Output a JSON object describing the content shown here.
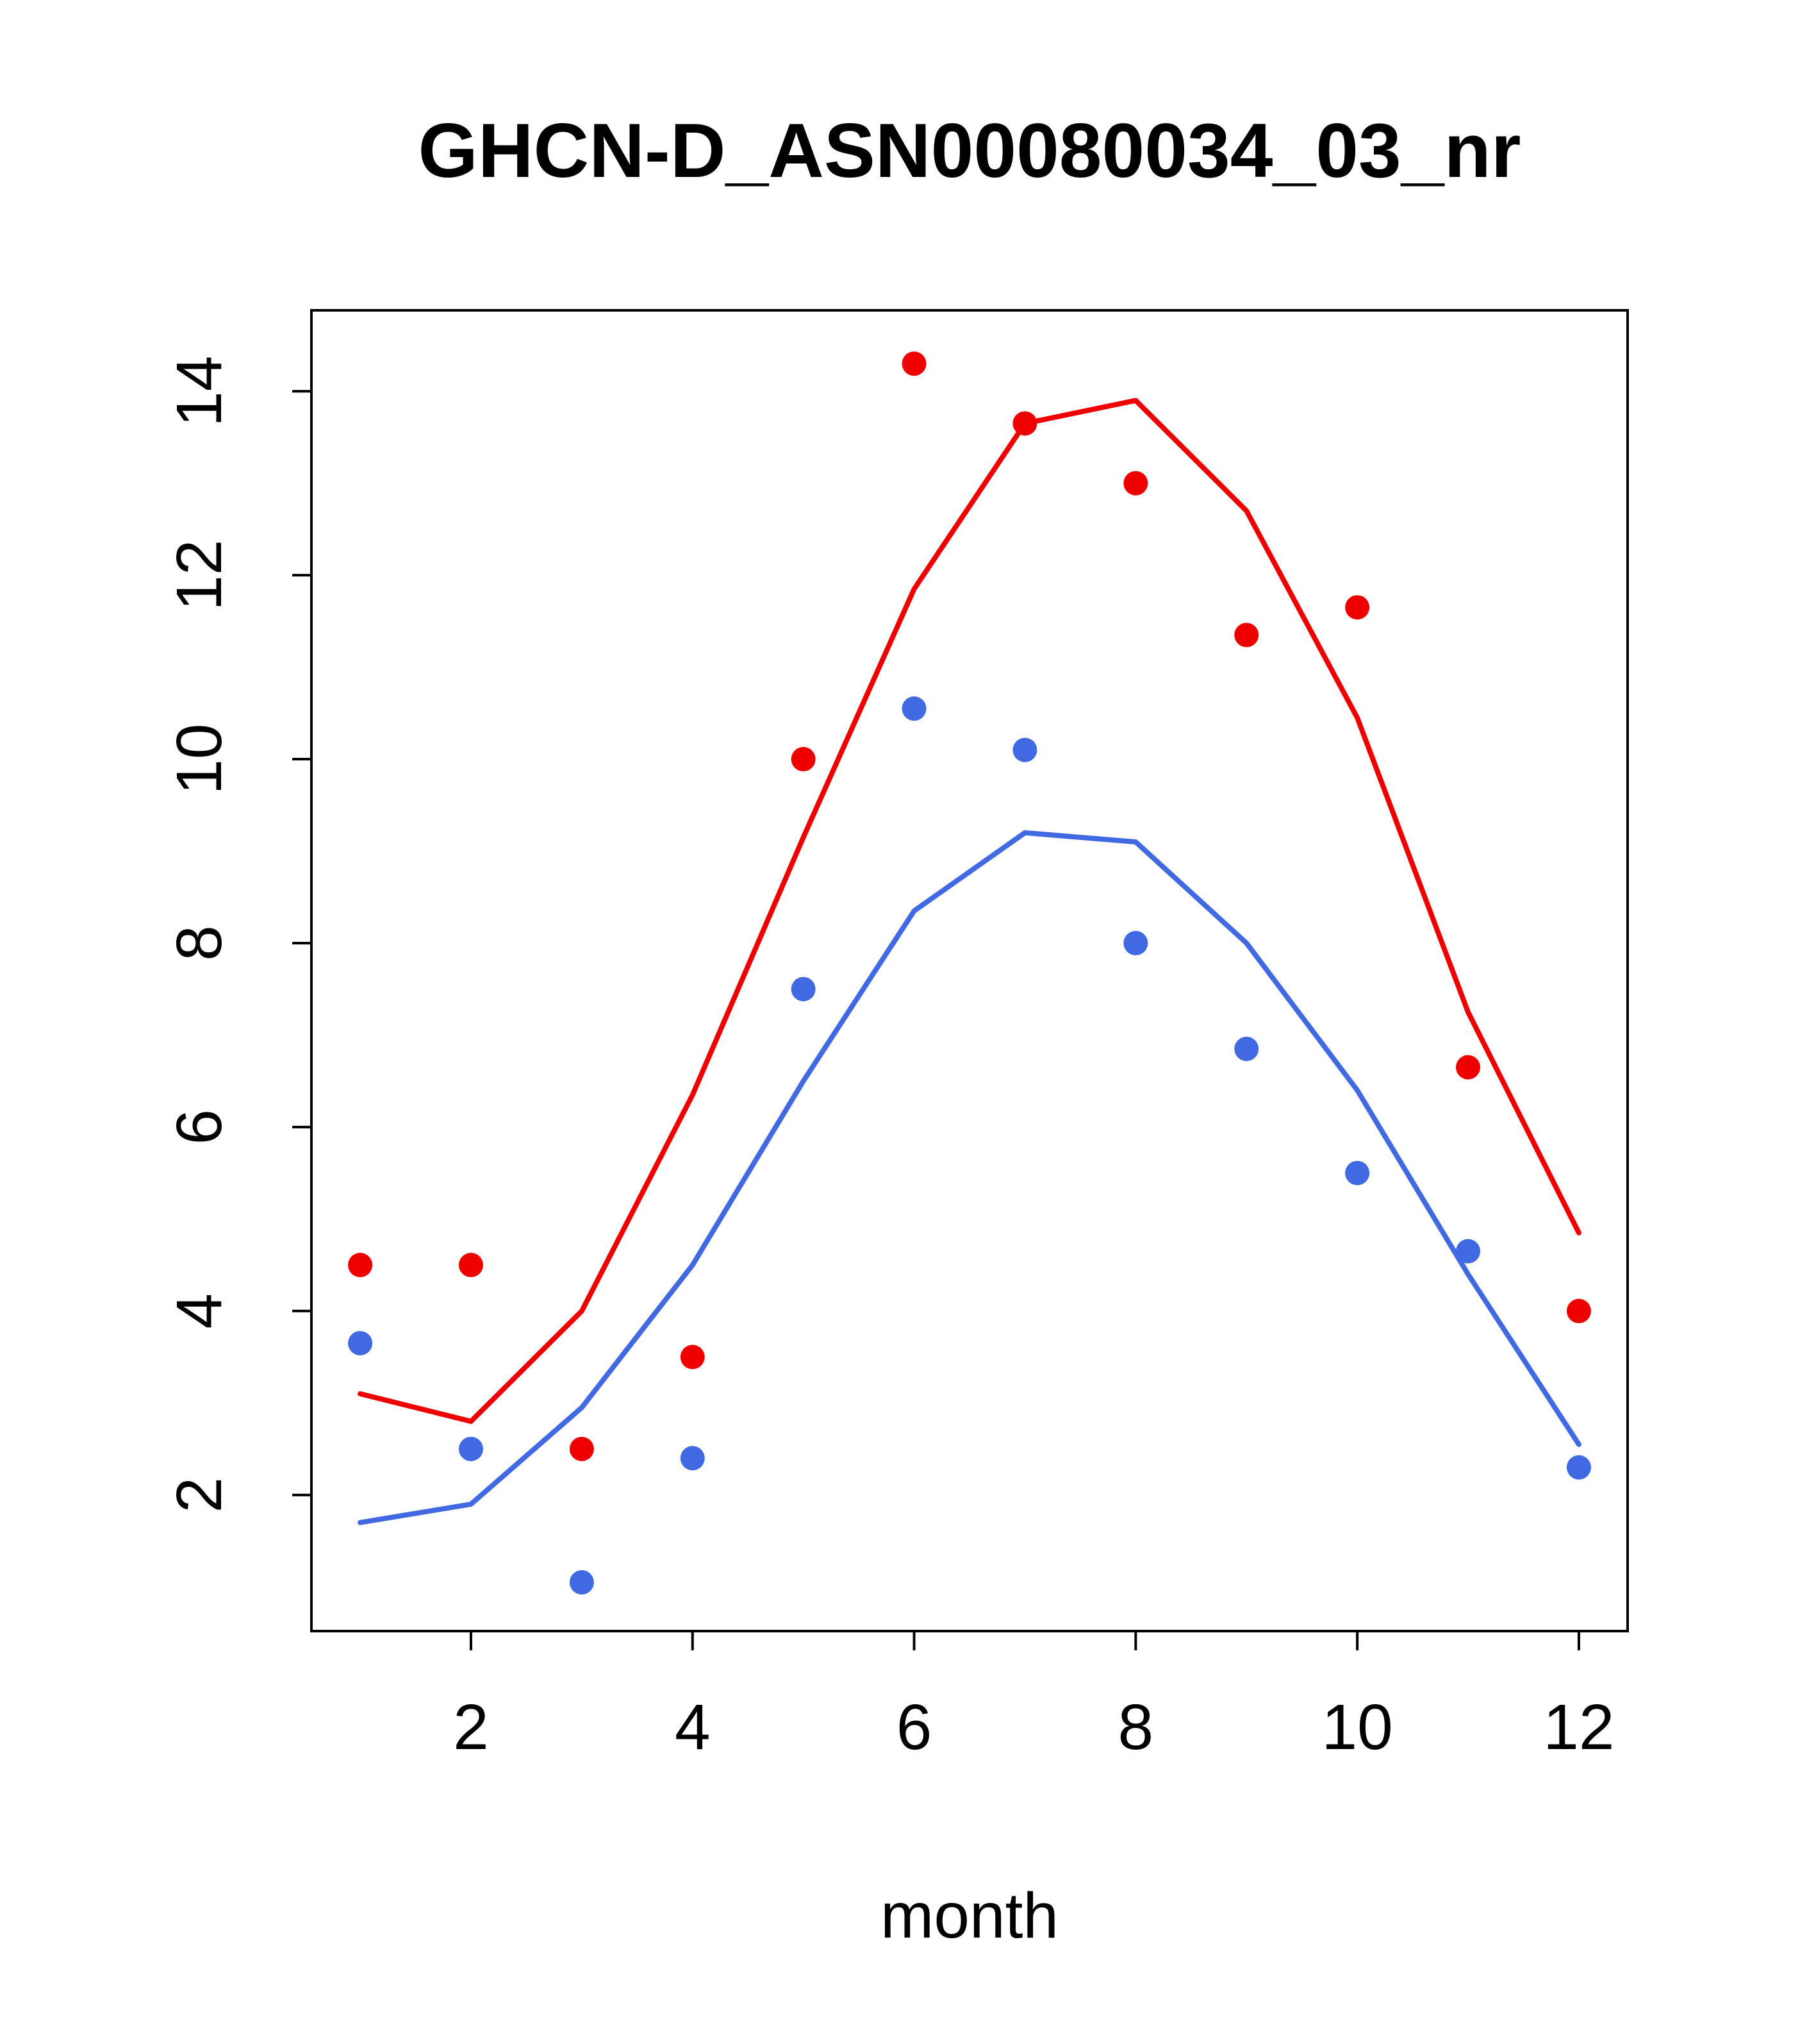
{
  "title": "GHCN-D_ASN00080034_03_nr",
  "chart_data": {
    "type": "line",
    "title": "GHCN-D_ASN00080034_03_nr",
    "xlabel": "month",
    "ylabel": "",
    "x": [
      1,
      2,
      3,
      4,
      5,
      6,
      7,
      8,
      9,
      10,
      11,
      12
    ],
    "xticks": [
      2,
      4,
      6,
      8,
      10,
      12
    ],
    "yticks": [
      2,
      4,
      6,
      8,
      10,
      12,
      14
    ],
    "xlim": [
      0.56,
      12.44
    ],
    "ylim": [
      0.52,
      14.88
    ],
    "grid": false,
    "legend": null,
    "colors": {
      "red": "#EE0000",
      "blue": "#4169E1",
      "axis": "#000000",
      "background": "#FFFFFF"
    },
    "series": [
      {
        "name": "red-line",
        "type": "line",
        "color": "#EE0000",
        "values": [
          3.1,
          2.8,
          4.0,
          6.35,
          9.15,
          11.85,
          13.65,
          13.9,
          12.7,
          10.45,
          7.25,
          4.85
        ]
      },
      {
        "name": "blue-line",
        "type": "line",
        "color": "#4169E1",
        "values": [
          1.7,
          1.9,
          2.95,
          4.5,
          6.5,
          8.35,
          9.2,
          9.1,
          8.0,
          6.4,
          4.4,
          2.55
        ]
      },
      {
        "name": "red-points",
        "type": "scatter",
        "color": "#EE0000",
        "values": [
          4.5,
          4.5,
          2.5,
          3.5,
          10.0,
          14.3,
          13.65,
          13.0,
          11.35,
          11.65,
          6.65,
          4.0
        ]
      },
      {
        "name": "blue-points",
        "type": "scatter",
        "color": "#4169E1",
        "values": [
          3.65,
          2.5,
          1.05,
          2.4,
          7.5,
          10.55,
          10.1,
          8.0,
          6.85,
          5.5,
          4.65,
          2.3
        ]
      }
    ]
  }
}
